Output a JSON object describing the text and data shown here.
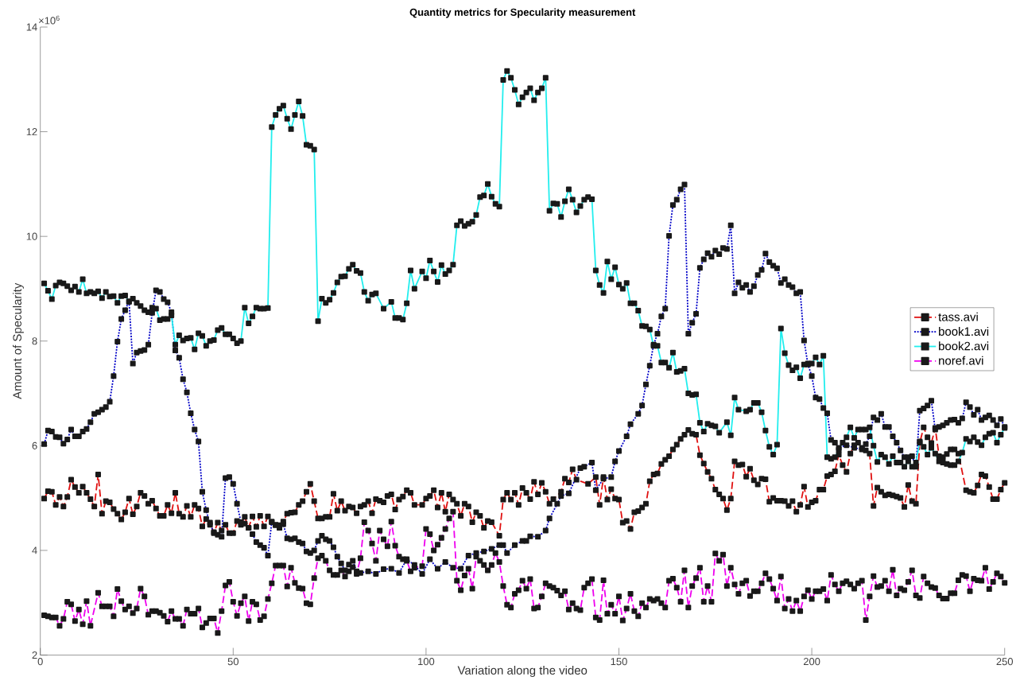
{
  "chart_data": {
    "type": "line",
    "title": "Quantity metrics for Specularity measurement",
    "xlabel": "Variation along the video",
    "ylabel": "Amount of Specularity",
    "annotations": [
      "×10$^{6}$"
    ],
    "xlim": [
      0,
      250
    ],
    "ylim": [
      2,
      14
    ],
    "xticks": [
      0,
      50,
      100,
      150,
      200,
      250
    ],
    "yticks": [
      2,
      4,
      6,
      8,
      10,
      12,
      14
    ],
    "grid": false,
    "legend": "right",
    "marker": "square",
    "series": [
      {
        "name": "tass.avi",
        "color": "#e01010",
        "line_style": "dashed",
        "x": [
          1,
          2,
          3,
          4,
          5,
          6,
          7,
          8,
          9,
          10,
          11,
          12,
          13,
          14,
          15,
          16,
          17,
          18,
          19,
          20,
          21,
          22,
          23,
          24,
          25,
          26,
          27,
          28,
          29,
          30,
          31,
          32,
          33,
          34,
          35,
          36,
          37,
          38,
          39,
          40,
          41,
          42,
          43,
          44,
          45,
          46,
          47,
          48,
          49,
          50,
          51,
          52,
          53,
          54,
          55,
          56,
          57,
          58,
          59,
          60,
          61,
          62,
          63,
          64,
          65,
          66,
          67,
          68,
          69,
          70,
          71,
          72,
          73,
          74,
          75,
          76,
          77,
          78,
          79,
          80,
          81,
          82,
          83,
          84,
          85,
          86,
          87,
          88,
          89,
          90,
          91,
          92,
          93,
          94,
          95,
          96,
          97,
          99,
          100,
          101,
          102,
          103,
          104,
          105,
          106,
          107,
          108,
          109,
          110,
          111,
          112,
          113,
          114,
          115,
          116,
          117,
          119,
          120,
          121,
          122,
          123,
          124,
          125,
          126,
          127,
          128,
          129,
          130,
          131,
          132,
          133,
          135,
          136,
          137,
          138,
          139,
          142,
          144,
          145,
          146,
          147,
          148,
          149,
          150,
          151,
          152,
          153,
          154,
          155,
          156,
          157,
          158,
          159,
          160,
          161,
          162,
          163,
          164,
          165,
          166,
          167,
          168,
          169,
          170,
          171,
          172,
          173,
          174,
          175,
          176,
          177,
          178,
          179,
          180,
          181,
          182,
          183,
          184,
          185,
          186,
          187,
          188,
          189,
          190,
          191,
          192,
          193,
          194,
          195,
          196,
          197,
          198,
          199,
          200,
          201,
          202,
          203,
          204,
          205,
          206,
          207,
          208,
          209,
          210,
          211,
          212,
          213,
          214,
          215,
          216,
          217,
          218,
          219,
          220,
          221,
          222,
          223,
          224,
          225,
          226,
          227,
          228,
          229,
          230,
          231,
          232,
          233,
          234,
          235,
          236,
          237,
          238,
          240,
          241,
          242,
          243,
          244,
          245,
          246,
          247,
          248,
          249,
          250
        ],
        "values": [
          4.99,
          5.13,
          5.12,
          4.87,
          5.02,
          4.84,
          5.02,
          5.35,
          5.21,
          5.1,
          5.22,
          5.1,
          4.98,
          4.84,
          5.45,
          4.7,
          4.94,
          4.92,
          4.79,
          4.7,
          4.59,
          4.73,
          4.99,
          4.69,
          4.84,
          5.1,
          5.04,
          4.89,
          4.95,
          4.8,
          4.66,
          4.66,
          4.87,
          4.71,
          5.1,
          4.7,
          4.64,
          4.85,
          4.64,
          4.87,
          4.8,
          4.46,
          4.6,
          4.53,
          4.33,
          4.53,
          4.38,
          4.49,
          4.33,
          4.33,
          4.56,
          4.49,
          4.64,
          4.43,
          4.65,
          4.45,
          4.66,
          4.46,
          4.65,
          4.55,
          4.48,
          4.48,
          4.55,
          4.7,
          4.72,
          4.73,
          4.87,
          4.94,
          5.12,
          5.27,
          4.94,
          4.61,
          4.61,
          4.64,
          4.64,
          5.08,
          4.76,
          4.94,
          4.76,
          4.84,
          4.82,
          4.71,
          4.84,
          4.87,
          4.94,
          4.71,
          4.98,
          4.95,
          4.92,
          5.04,
          5.07,
          4.78,
          4.97,
          5.03,
          5.15,
          5.1,
          4.87,
          4.87,
          4.99,
          5.04,
          5.15,
          4.82,
          5.1,
          4.74,
          5.07,
          4.97,
          4.89,
          4.66,
          4.89,
          4.84,
          4.54,
          4.73,
          4.66,
          4.43,
          4.56,
          4.54,
          4.28,
          4.97,
          5.1,
          4.97,
          5.1,
          4.87,
          5.19,
          5.1,
          4.98,
          5.31,
          5.07,
          5.29,
          5.12,
          4.89,
          4.98,
          5.12,
          5.37,
          5.3,
          5.55,
          5.35,
          5.27,
          5.4,
          4.87,
          5.4,
          4.97,
          5.17,
          4.99,
          4.97,
          4.53,
          4.56,
          4.41,
          4.73,
          4.75,
          4.82,
          4.89,
          5.32,
          5.45,
          5.47,
          5.65,
          5.73,
          5.8,
          5.93,
          6.02,
          6.13,
          6.21,
          6.3,
          6.23,
          6.21,
          5.82,
          5.66,
          5.5,
          5.37,
          5.16,
          5.07,
          4.99,
          4.77,
          4.99,
          5.7,
          5.63,
          5.64,
          5.41,
          5.56,
          5.34,
          5.26,
          5.37,
          5.36,
          4.93,
          5.0,
          4.95,
          4.95,
          4.94,
          4.85,
          4.94,
          4.74,
          4.87,
          5.22,
          4.83,
          4.92,
          4.95,
          5.16,
          5.16,
          5.42,
          5.45,
          5.51,
          5.83,
          5.63,
          5.5,
          5.85,
          6.01,
          6.06,
          5.96,
          5.91,
          5.85,
          4.85,
          5.2,
          5.12,
          5.05,
          5.07,
          5.05,
          5.03,
          5.0,
          4.83,
          5.25,
          4.94,
          4.89,
          6.06,
          6.35,
          6.16,
          6.05,
          6.34,
          5.8,
          5.78,
          5.84,
          5.93,
          5.93,
          5.85,
          5.15,
          5.12,
          5.1,
          5.24,
          5.45,
          5.42,
          5.21,
          4.98,
          4.98,
          5.16,
          5.29
        ]
      },
      {
        "name": "book1.avi",
        "color": "#0000c8",
        "line_style": "dotted",
        "x": [
          1,
          2,
          3,
          4,
          5,
          6,
          7,
          8,
          9,
          10,
          11,
          12,
          13,
          14,
          15,
          16,
          17,
          18,
          19,
          20,
          21,
          22,
          23,
          24,
          25,
          26,
          27,
          28,
          29,
          30,
          31,
          32,
          33,
          34,
          35,
          36,
          37,
          38,
          39,
          40,
          41,
          42,
          43,
          44,
          45,
          46,
          47,
          48,
          49,
          50,
          51,
          52,
          53,
          54,
          55,
          56,
          57,
          58,
          59,
          60,
          61,
          62,
          63,
          64,
          65,
          66,
          67,
          68,
          69,
          70,
          71,
          72,
          73,
          74,
          75,
          76,
          77,
          78,
          79,
          80,
          81,
          82,
          83,
          85,
          87,
          89,
          91,
          93,
          95,
          97,
          99,
          101,
          103,
          105,
          107,
          109,
          111,
          113,
          115,
          117,
          119,
          120,
          121,
          123,
          125,
          126,
          127,
          129,
          131,
          132,
          134,
          135,
          137,
          140,
          141,
          143,
          144,
          146,
          148,
          149,
          150,
          152,
          153,
          155,
          156,
          157,
          158,
          159,
          160,
          161,
          162,
          163,
          164,
          165,
          166,
          167,
          168,
          169,
          170,
          171,
          172,
          173,
          174,
          175,
          176,
          177,
          178,
          179,
          180,
          181,
          182,
          183,
          184,
          185,
          186,
          187,
          188,
          189,
          190,
          191,
          192,
          193,
          194,
          195,
          196,
          197,
          198,
          199,
          200,
          201,
          202,
          203,
          204,
          205,
          206,
          207,
          209,
          211,
          213,
          214,
          215,
          216,
          217,
          218,
          219,
          220,
          221,
          222,
          223,
          224,
          225,
          226,
          227,
          228,
          229,
          230,
          231,
          232,
          233,
          234,
          235,
          236,
          237,
          238,
          239,
          240,
          241,
          242,
          243,
          244,
          245,
          246,
          247,
          248,
          249,
          250
        ],
        "values": [
          6.03,
          6.29,
          6.27,
          6.17,
          6.16,
          6.04,
          6.12,
          6.31,
          6.18,
          6.18,
          6.27,
          6.32,
          6.45,
          6.61,
          6.64,
          6.69,
          6.74,
          6.84,
          7.33,
          7.99,
          8.42,
          8.59,
          8.76,
          7.57,
          7.78,
          7.81,
          7.83,
          7.93,
          8.54,
          8.97,
          8.94,
          8.8,
          8.74,
          8.55,
          7.82,
          7.68,
          7.27,
          7.02,
          6.62,
          6.31,
          6.08,
          5.12,
          4.77,
          4.49,
          4.35,
          4.3,
          4.26,
          5.38,
          5.4,
          5.27,
          4.89,
          4.54,
          4.51,
          4.43,
          4.31,
          4.16,
          4.1,
          4.05,
          3.9,
          4.54,
          4.49,
          4.43,
          4.5,
          4.23,
          4.21,
          4.23,
          4.16,
          4.13,
          3.98,
          3.95,
          4.0,
          4.18,
          4.28,
          4.21,
          4.18,
          4.06,
          3.88,
          3.75,
          3.62,
          3.73,
          3.8,
          3.6,
          3.57,
          3.6,
          3.55,
          3.64,
          3.65,
          3.57,
          3.83,
          3.72,
          3.55,
          3.83,
          3.65,
          3.78,
          3.67,
          3.65,
          3.9,
          3.95,
          3.98,
          4.03,
          4.1,
          4.1,
          3.95,
          4.1,
          4.18,
          4.18,
          4.27,
          4.26,
          4.38,
          4.61,
          4.89,
          5.04,
          5.09,
          5.57,
          5.6,
          5.68,
          5.15,
          5.37,
          5.4,
          5.7,
          5.9,
          6.18,
          6.41,
          6.61,
          6.77,
          7.17,
          7.53,
          7.93,
          8.14,
          8.47,
          8.62,
          10.01,
          10.6,
          10.7,
          10.9,
          10.99,
          8.14,
          8.35,
          8.52,
          9.4,
          9.56,
          9.68,
          9.61,
          9.73,
          9.66,
          9.78,
          9.76,
          10.21,
          8.91,
          9.12,
          9.02,
          9.07,
          8.94,
          9.05,
          9.26,
          9.36,
          9.67,
          9.51,
          9.44,
          9.39,
          9.11,
          9.18,
          9.07,
          9.03,
          8.91,
          8.94,
          8.01,
          7.55,
          7.33,
          6.92,
          6.89,
          6.72,
          6.62,
          6.11,
          6.06,
          5.96,
          6.01,
          5.96,
          5.93,
          6.03,
          6.18,
          6.54,
          6.49,
          6.61,
          6.36,
          6.36,
          6.18,
          6.06,
          5.91,
          5.78,
          5.78,
          5.8,
          5.6,
          6.67,
          6.71,
          6.77,
          6.86,
          6.31,
          6.36,
          6.39,
          6.44,
          6.49,
          6.5,
          6.44,
          6.52,
          6.83,
          6.74,
          6.59,
          6.69,
          6.49,
          6.54,
          6.58,
          6.49,
          6.39,
          6.51,
          6.36
        ]
      },
      {
        "name": "book2.avi",
        "color": "#22eeee",
        "line_style": "solid",
        "x": [
          1,
          2,
          3,
          4,
          5,
          6,
          7,
          8,
          9,
          10,
          11,
          12,
          13,
          14,
          15,
          16,
          17,
          18,
          19,
          20,
          21,
          22,
          23,
          24,
          25,
          26,
          27,
          28,
          29,
          30,
          31,
          32,
          33,
          34,
          35,
          36,
          37,
          38,
          39,
          40,
          41,
          42,
          43,
          44,
          45,
          46,
          47,
          48,
          49,
          50,
          51,
          52,
          53,
          54,
          55,
          56,
          57,
          58,
          59,
          60,
          61,
          62,
          63,
          64,
          65,
          66,
          67,
          68,
          69,
          70,
          71,
          72,
          73,
          74,
          75,
          76,
          77,
          78,
          79,
          80,
          81,
          82,
          83,
          84,
          85,
          86,
          87,
          89,
          91,
          92,
          93,
          94,
          95,
          96,
          97,
          99,
          100,
          101,
          102,
          103,
          104,
          105,
          106,
          107,
          108,
          109,
          110,
          111,
          112,
          113,
          114,
          115,
          116,
          117,
          118,
          119,
          120,
          121,
          122,
          123,
          124,
          125,
          126,
          127,
          128,
          129,
          130,
          131,
          132,
          133,
          134,
          135,
          136,
          137,
          138,
          139,
          140,
          141,
          142,
          143,
          144,
          145,
          146,
          147,
          148,
          149,
          150,
          151,
          152,
          153,
          154,
          155,
          156,
          157,
          158,
          159,
          160,
          161,
          162,
          163,
          164,
          165,
          166,
          167,
          168,
          169,
          170,
          171,
          172,
          173,
          174,
          175,
          176,
          178,
          179,
          180,
          181,
          183,
          184,
          185,
          186,
          187,
          188,
          189,
          190,
          191,
          192,
          193,
          194,
          195,
          196,
          197,
          198,
          199,
          200,
          201,
          202,
          203,
          204,
          205,
          206,
          207,
          208,
          209,
          210,
          211,
          212,
          213,
          214,
          215,
          216,
          217,
          218,
          219,
          220,
          221,
          222,
          223,
          224,
          225,
          226,
          227,
          228,
          229,
          230,
          231,
          232,
          233,
          234,
          235,
          236,
          237,
          238,
          239,
          240,
          241,
          242,
          243,
          244,
          245,
          246,
          247,
          248,
          249,
          250
        ],
        "values": [
          9.1,
          8.96,
          8.8,
          9.06,
          9.12,
          9.1,
          9.05,
          8.97,
          9.04,
          8.94,
          9.18,
          8.91,
          8.94,
          8.91,
          8.95,
          8.82,
          8.94,
          8.85,
          8.86,
          8.73,
          8.86,
          8.87,
          8.75,
          8.81,
          8.73,
          8.67,
          8.59,
          8.55,
          8.64,
          8.62,
          8.4,
          8.42,
          8.42,
          8.49,
          7.93,
          8.11,
          8.01,
          8.05,
          8.06,
          7.84,
          8.15,
          8.1,
          7.91,
          8.0,
          8.02,
          8.21,
          8.25,
          8.13,
          8.13,
          8.05,
          7.96,
          8.0,
          8.64,
          8.34,
          8.47,
          8.64,
          8.62,
          8.62,
          8.63,
          12.09,
          12.32,
          12.44,
          12.5,
          12.25,
          12.05,
          12.32,
          12.58,
          12.3,
          11.75,
          11.73,
          11.66,
          8.38,
          8.81,
          8.73,
          8.79,
          8.92,
          9.12,
          9.23,
          9.24,
          9.38,
          9.46,
          9.34,
          9.3,
          8.94,
          8.77,
          8.89,
          8.91,
          8.62,
          8.75,
          8.44,
          8.44,
          8.41,
          8.72,
          9.35,
          9.0,
          9.33,
          9.2,
          9.54,
          9.33,
          9.13,
          9.45,
          9.28,
          9.35,
          9.46,
          10.21,
          10.29,
          10.2,
          10.24,
          10.28,
          10.41,
          10.75,
          10.78,
          11.0,
          10.76,
          10.62,
          10.57,
          12.99,
          13.16,
          13.03,
          12.8,
          12.52,
          12.66,
          12.75,
          12.83,
          12.6,
          12.75,
          12.83,
          13.03,
          10.49,
          10.63,
          10.62,
          10.37,
          10.67,
          10.9,
          10.7,
          10.46,
          10.58,
          10.7,
          10.75,
          10.71,
          9.35,
          9.07,
          8.92,
          9.52,
          9.18,
          9.41,
          9.08,
          9.0,
          9.11,
          8.72,
          8.72,
          8.58,
          8.29,
          8.28,
          8.22,
          7.91,
          7.91,
          7.59,
          7.59,
          7.49,
          7.78,
          7.41,
          7.43,
          7.47,
          7.0,
          6.97,
          6.98,
          6.44,
          6.27,
          6.42,
          6.39,
          6.37,
          6.25,
          6.45,
          6.2,
          6.92,
          6.69,
          6.66,
          6.69,
          6.82,
          6.82,
          6.64,
          6.29,
          5.98,
          5.83,
          6.02,
          8.24,
          7.77,
          7.54,
          7.44,
          7.5,
          7.29,
          7.55,
          7.57,
          7.57,
          7.69,
          7.55,
          7.72,
          5.78,
          5.75,
          5.78,
          5.92,
          6.06,
          6.16,
          6.35,
          6.15,
          6.31,
          6.31,
          6.31,
          6.35,
          6.0,
          5.69,
          5.83,
          5.78,
          5.65,
          5.8,
          5.68,
          5.68,
          5.6,
          5.7,
          5.6,
          5.68,
          6.08,
          5.98,
          5.83,
          5.96,
          5.85,
          5.7,
          5.68,
          5.65,
          5.63,
          5.63,
          5.7,
          5.87,
          6.13,
          6.08,
          6.16,
          6.07,
          6.01,
          6.16,
          6.23,
          6.25,
          6.06,
          6.21,
          6.34
        ]
      },
      {
        "name": "noref.avi",
        "color": "#ee00ee",
        "line_style": "dashed",
        "x": [
          1,
          2,
          3,
          4,
          5,
          6,
          7,
          8,
          9,
          10,
          11,
          12,
          13,
          15,
          16,
          17,
          18,
          19,
          20,
          21,
          22,
          23,
          24,
          25,
          26,
          27,
          28,
          29,
          30,
          31,
          32,
          33,
          34,
          35,
          36,
          37,
          38,
          39,
          40,
          41,
          42,
          43,
          44,
          45,
          46,
          47,
          48,
          49,
          50,
          51,
          52,
          53,
          54,
          55,
          56,
          57,
          58,
          59,
          60,
          61,
          62,
          63,
          64,
          65,
          66,
          67,
          68,
          69,
          70,
          71,
          72,
          73,
          74,
          75,
          76,
          77,
          78,
          79,
          80,
          81,
          82,
          83,
          84,
          85,
          86,
          87,
          88,
          89,
          90,
          91,
          92,
          93,
          94,
          95,
          96,
          97,
          99,
          100,
          101,
          102,
          103,
          104,
          105,
          106,
          107,
          108,
          109,
          110,
          111,
          112,
          113,
          114,
          115,
          116,
          117,
          118,
          119,
          120,
          121,
          122,
          123,
          124,
          125,
          126,
          127,
          128,
          129,
          130,
          131,
          132,
          133,
          134,
          135,
          136,
          137,
          138,
          139,
          140,
          141,
          142,
          143,
          144,
          145,
          146,
          147,
          148,
          149,
          150,
          151,
          152,
          153,
          154,
          155,
          156,
          157,
          158,
          159,
          160,
          161,
          162,
          163,
          164,
          165,
          166,
          167,
          168,
          169,
          170,
          171,
          172,
          173,
          174,
          175,
          176,
          177,
          178,
          179,
          180,
          181,
          182,
          183,
          184,
          185,
          186,
          187,
          188,
          189,
          190,
          191,
          192,
          193,
          194,
          195,
          196,
          197,
          198,
          199,
          200,
          201,
          202,
          203,
          204,
          205,
          206,
          207,
          208,
          209,
          210,
          211,
          212,
          213,
          214,
          215,
          216,
          217,
          218,
          219,
          220,
          221,
          222,
          223,
          224,
          225,
          226,
          227,
          228,
          229,
          230,
          231,
          232,
          233,
          234,
          235,
          236,
          237,
          238,
          239,
          240,
          241,
          242,
          243,
          244,
          245,
          246,
          247,
          248,
          249,
          250
        ],
        "values": [
          2.76,
          2.74,
          2.72,
          2.72,
          2.56,
          2.69,
          3.02,
          2.97,
          2.65,
          2.87,
          2.59,
          3.03,
          2.56,
          3.19,
          2.93,
          2.93,
          2.93,
          2.74,
          3.26,
          3.03,
          2.87,
          2.93,
          2.8,
          2.89,
          3.27,
          3.12,
          2.77,
          2.84,
          2.84,
          2.81,
          2.75,
          2.64,
          2.84,
          2.69,
          2.69,
          2.56,
          2.87,
          2.79,
          2.79,
          2.89,
          2.53,
          2.61,
          2.7,
          2.7,
          2.42,
          2.84,
          3.33,
          3.4,
          3.02,
          2.75,
          2.99,
          3.12,
          2.65,
          3.02,
          2.97,
          2.67,
          2.74,
          3.07,
          3.37,
          3.71,
          3.71,
          3.71,
          3.31,
          3.67,
          3.38,
          3.28,
          3.27,
          2.99,
          2.97,
          3.47,
          3.85,
          3.9,
          3.8,
          3.62,
          3.53,
          3.53,
          3.62,
          3.5,
          3.6,
          3.68,
          3.55,
          3.85,
          4.54,
          4.38,
          4.13,
          3.8,
          4.38,
          4.21,
          4.08,
          4.55,
          4.09,
          3.88,
          3.83,
          3.8,
          3.6,
          3.67,
          3.7,
          4.41,
          4.31,
          4.0,
          4.11,
          4.24,
          4.41,
          4.61,
          4.74,
          3.42,
          3.24,
          3.52,
          3.65,
          3.27,
          3.88,
          3.8,
          3.72,
          3.62,
          3.72,
          3.95,
          3.78,
          3.32,
          2.96,
          2.91,
          3.17,
          3.24,
          3.42,
          3.27,
          3.45,
          2.89,
          2.91,
          3.12,
          3.37,
          3.32,
          3.29,
          3.23,
          3.14,
          3.22,
          2.87,
          2.99,
          2.89,
          2.86,
          3.29,
          3.37,
          3.45,
          2.72,
          2.67,
          3.43,
          2.79,
          2.96,
          2.79,
          3.12,
          2.66,
          2.89,
          3.17,
          2.84,
          2.74,
          2.99,
          2.91,
          3.07,
          3.04,
          3.07,
          2.99,
          2.91,
          3.42,
          3.46,
          3.29,
          3.02,
          3.62,
          2.91,
          3.32,
          3.47,
          3.67,
          3.02,
          3.32,
          3.02,
          3.94,
          3.8,
          3.92,
          3.32,
          3.67,
          3.35,
          3.17,
          3.37,
          3.42,
          3.13,
          3.22,
          3.22,
          3.37,
          3.56,
          3.45,
          3.27,
          3.04,
          3.5,
          2.89,
          3.07,
          2.84,
          3.04,
          2.84,
          3.12,
          3.24,
          3.07,
          3.22,
          3.22,
          3.26,
          3.04,
          3.53,
          3.35,
          3.22,
          3.37,
          3.41,
          3.35,
          3.27,
          3.37,
          3.42,
          2.67,
          3.12,
          3.51,
          3.3,
          3.32,
          3.42,
          3.22,
          3.63,
          3.14,
          3.27,
          3.24,
          3.4,
          3.62,
          3.14,
          3.09,
          3.5,
          3.37,
          3.3,
          3.28,
          3.14,
          3.08,
          3.08,
          3.18,
          3.18,
          3.43,
          3.53,
          3.51,
          3.22,
          3.46,
          3.43,
          3.42,
          3.67,
          3.26,
          3.4,
          3.56,
          3.5,
          3.38
        ]
      }
    ]
  }
}
